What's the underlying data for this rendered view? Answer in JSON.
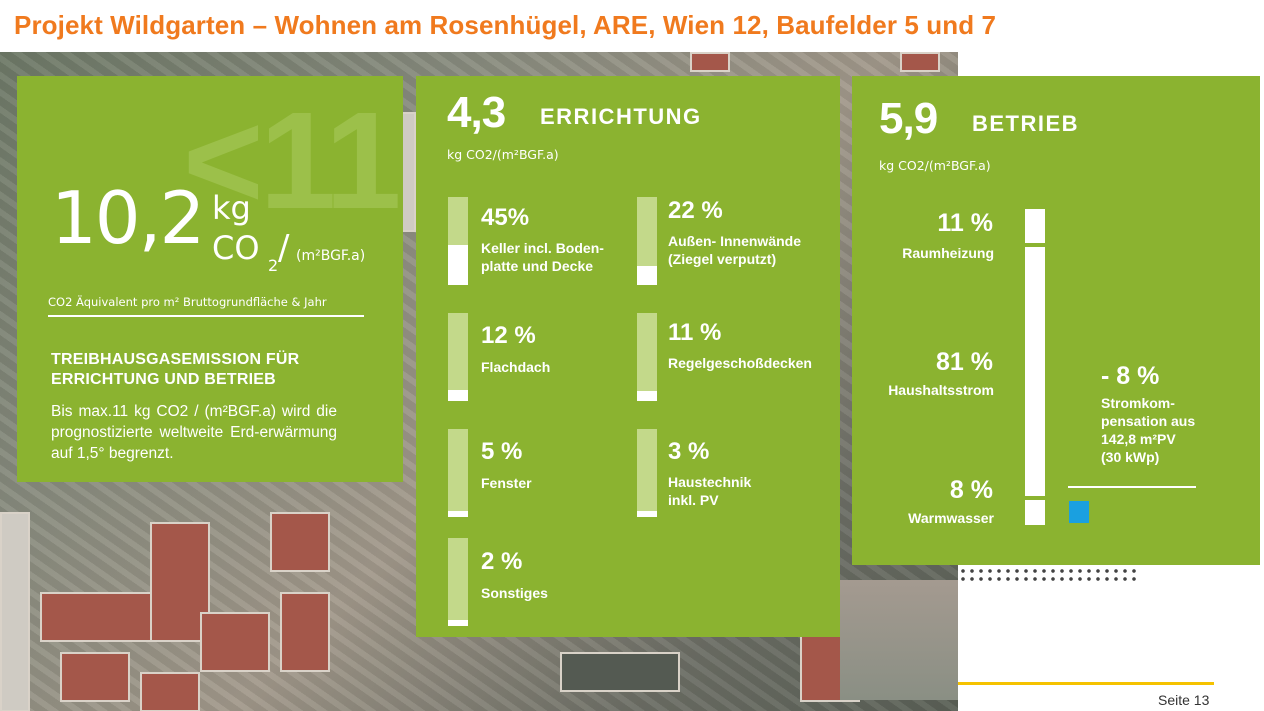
{
  "slide": {
    "title": "Projekt Wildgarten – Wohnen am Rosenhügel, ARE, Wien 12, Baufelder 5 und 7",
    "page_label": "Seite 13"
  },
  "colors": {
    "title": "#f07a1e",
    "panel_green": "#8bb330",
    "bar_track": "#c3d98a",
    "compensation_box": "#1aa0e0",
    "footer_line": "#f5c200"
  },
  "summary": {
    "background_number": "<11",
    "value": "10,2",
    "unit_kg": "kg",
    "unit_co": "CO",
    "unit_sub": "2",
    "unit_slash": "/",
    "unit_area": "(m²BGF.a)",
    "caption": "CO2 Äquivalent pro m² Bruttogrundfläche & Jahr",
    "heading": "TREIBHAUSGASEMISSION FÜR ERRICHTUNG UND BETRIEB",
    "text": "Bis max.11 kg CO2 / (m²BGF.a) wird die prognostizierte weltweite Erd-erwärmung auf 1,5° begrenzt."
  },
  "construction": {
    "value": "4,3",
    "label": "ERRICHTUNG",
    "unit": "kg CO2/(m²BGF.a)",
    "items": [
      {
        "percent": "45%",
        "label": "Keller incl. Boden-\nplatte und Decke",
        "share": 0.45
      },
      {
        "percent": "22 %",
        "label": "Außen- Innenwände\n(Ziegel verputzt)",
        "share": 0.22
      },
      {
        "percent": "12 %",
        "label": "Flachdach",
        "share": 0.12
      },
      {
        "percent": "11 %",
        "label": "Regelgeschoßdecken",
        "share": 0.11
      },
      {
        "percent": "5 %",
        "label": "Fenster",
        "share": 0.05
      },
      {
        "percent": "3 %",
        "label": "Haustechnik\ninkl. PV",
        "share": 0.03
      },
      {
        "percent": "2 %",
        "label": "Sonstiges",
        "share": 0.02
      }
    ]
  },
  "operation": {
    "value": "5,9",
    "label": "BETRIEB",
    "unit": "kg CO2/(m²BGF.a)",
    "items": [
      {
        "percent": "11 %",
        "label": "Raumheizung",
        "share": 0.11
      },
      {
        "percent": "81 %",
        "label": "Haushaltsstrom",
        "share": 0.81
      },
      {
        "percent": "8 %",
        "label": "Warmwasser",
        "share": 0.08
      }
    ],
    "compensation": {
      "percent": "- 8 %",
      "label": "Stromkom-\npensation aus\n142,8 m²PV\n(30 kWp)"
    }
  }
}
